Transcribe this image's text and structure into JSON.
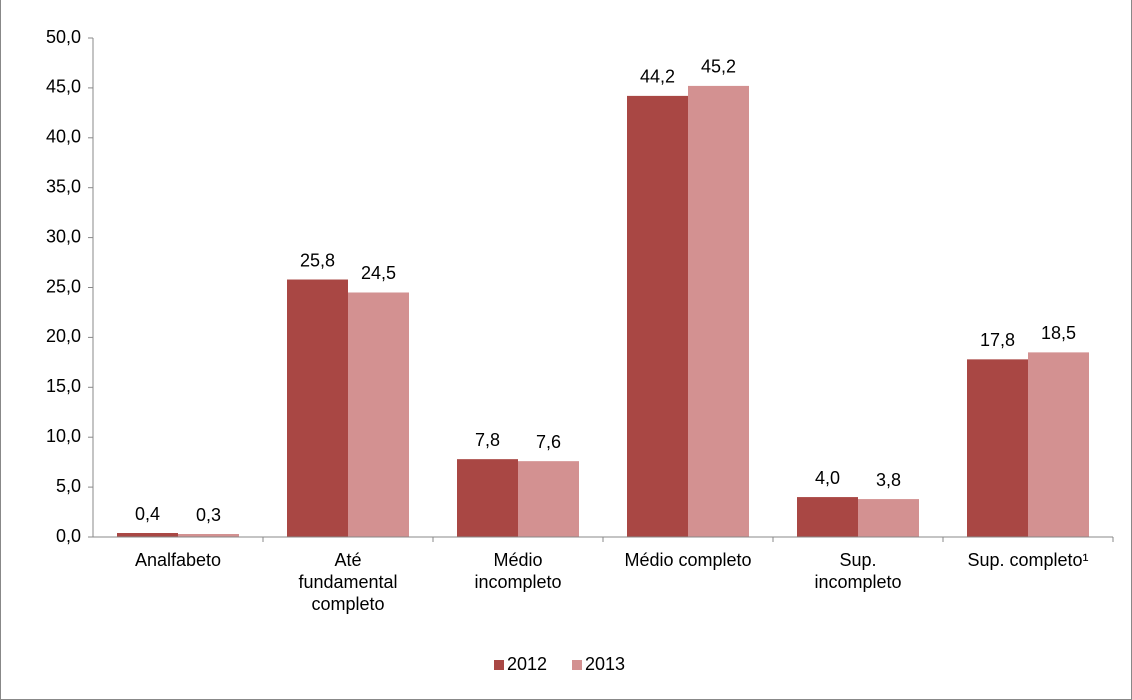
{
  "chart_data": {
    "type": "bar",
    "categories": [
      "Analfabeto",
      "Até\nfundamental\ncompleto",
      "Médio\nincompleto",
      "Médio completo",
      "Sup.\nincompleto",
      "Sup. completo¹"
    ],
    "series": [
      {
        "name": "2012",
        "color": "#a94744",
        "values": [
          0.4,
          25.8,
          7.8,
          44.2,
          4.0,
          17.8
        ],
        "value_labels": [
          "0,4",
          "25,8",
          "7,8",
          "44,2",
          "4,0",
          "17,8"
        ]
      },
      {
        "name": "2013",
        "color": "#d39191",
        "values": [
          0.3,
          24.5,
          7.6,
          45.2,
          3.8,
          18.5
        ],
        "value_labels": [
          "0,3",
          "24,5",
          "7,6",
          "45,2",
          "3,8",
          "18,5"
        ]
      }
    ],
    "ylim": [
      0,
      50
    ],
    "yticks": [
      {
        "value": 0,
        "label": "0,0"
      },
      {
        "value": 5,
        "label": "5,0"
      },
      {
        "value": 10,
        "label": "10,0"
      },
      {
        "value": 15,
        "label": "15,0"
      },
      {
        "value": 20,
        "label": "20,0"
      },
      {
        "value": 25,
        "label": "25,0"
      },
      {
        "value": 30,
        "label": "30,0"
      },
      {
        "value": 35,
        "label": "35,0"
      },
      {
        "value": 40,
        "label": "40,0"
      },
      {
        "value": 45,
        "label": "45,0"
      },
      {
        "value": 50,
        "label": "50,0"
      }
    ],
    "legend": "bottom"
  }
}
